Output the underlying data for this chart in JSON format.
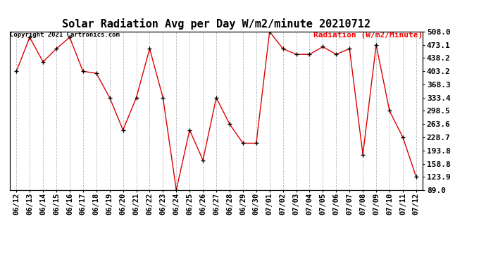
{
  "title": "Solar Radiation Avg per Day W/m2/minute 20210712",
  "copyright_text": "Copyright 2021 Cartronics.com",
  "legend_text": "Radiation (W/m2/Minute)",
  "dates": [
    "06/12",
    "06/13",
    "06/14",
    "06/15",
    "06/16",
    "06/17",
    "06/18",
    "06/19",
    "06/20",
    "06/21",
    "06/22",
    "06/23",
    "06/24",
    "06/25",
    "06/26",
    "06/27",
    "06/28",
    "06/29",
    "06/30",
    "07/01",
    "07/02",
    "07/03",
    "07/04",
    "07/05",
    "07/06",
    "07/07",
    "07/08",
    "07/09",
    "07/10",
    "07/11",
    "07/12"
  ],
  "values": [
    403.2,
    493.0,
    428.2,
    463.0,
    493.0,
    403.2,
    398.0,
    333.4,
    248.0,
    333.4,
    463.0,
    333.4,
    89.0,
    248.0,
    168.0,
    333.4,
    263.6,
    213.0,
    213.0,
    508.0,
    463.0,
    448.0,
    448.0,
    468.0,
    448.0,
    463.0,
    183.0,
    473.1,
    298.5,
    228.7,
    123.9
  ],
  "line_color": "#dd0000",
  "marker_color": "#000000",
  "background_color": "#ffffff",
  "grid_color": "#bbbbbb",
  "title_fontsize": 11,
  "ytick_labels": [
    "89.0",
    "123.9",
    "158.8",
    "193.8",
    "228.7",
    "263.6",
    "298.5",
    "333.4",
    "368.3",
    "403.2",
    "438.2",
    "473.1",
    "508.0"
  ],
  "ytick_values": [
    89.0,
    123.9,
    158.8,
    193.8,
    228.7,
    263.6,
    298.5,
    333.4,
    368.3,
    403.2,
    438.2,
    473.1,
    508.0
  ],
  "ylim_min": 89.0,
  "ylim_max": 508.0
}
